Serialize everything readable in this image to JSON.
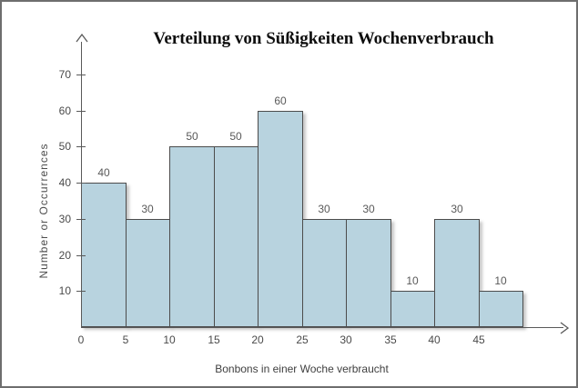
{
  "window": {
    "background": "#ffffff",
    "frame_color": "#6e6e6e"
  },
  "chart_data": {
    "type": "bar",
    "subtype": "histogram",
    "title": "Verteilung von Süßigkeiten Wochenverbrauch",
    "xlabel": "Bonbons in einer Woche verbraucht",
    "ylabel": "Number or Occurrences",
    "bin_edges": [
      0,
      5,
      10,
      15,
      20,
      25,
      30,
      35,
      40,
      45,
      50
    ],
    "categories": [
      "0-5",
      "5-10",
      "10-15",
      "15-20",
      "20-25",
      "25-30",
      "30-35",
      "35-40",
      "40-45",
      "45-50"
    ],
    "values": [
      40,
      30,
      50,
      50,
      60,
      30,
      30,
      10,
      30,
      10
    ],
    "bar_value_labels": [
      "40",
      "30",
      "50",
      "50",
      "60",
      "30",
      "30",
      "10",
      "30",
      "10"
    ],
    "yticks": [
      10,
      20,
      30,
      40,
      50,
      60,
      70
    ],
    "xticks": [
      0,
      5,
      10,
      15,
      20,
      25,
      30,
      35,
      40,
      45
    ],
    "ylim": [
      0,
      70
    ],
    "xlim": [
      0,
      50
    ],
    "grid": false,
    "legend": null,
    "bar_fill": "#b8d3df",
    "bar_border": "#4c4c4c",
    "axis_color": "#595959",
    "tick_label_color": "#4a4a4a",
    "bar_label_color": "#595959",
    "title_color": "#0d0d0d"
  }
}
